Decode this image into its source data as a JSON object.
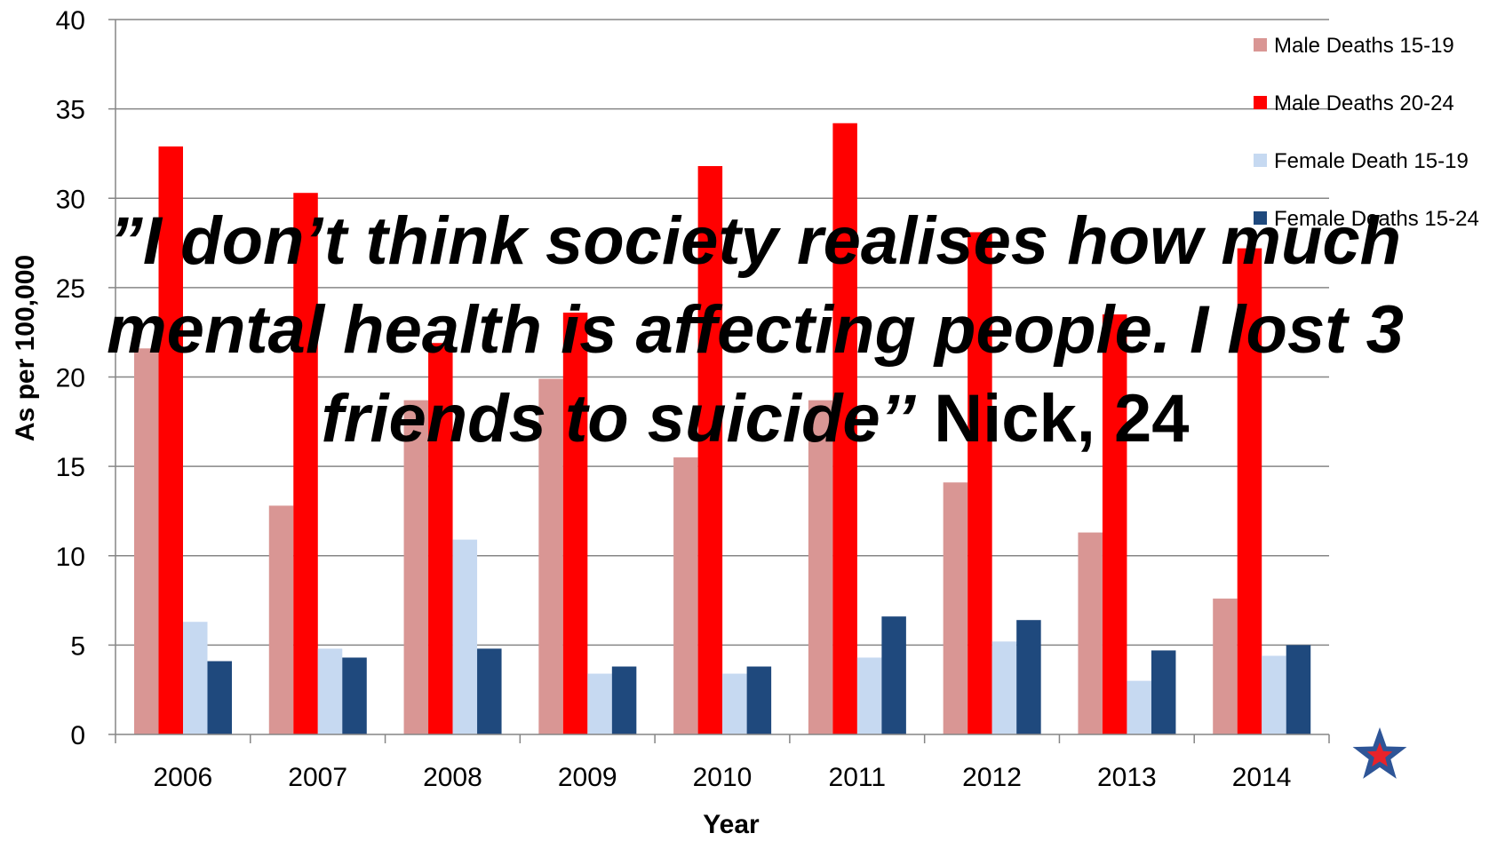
{
  "chart_data": {
    "type": "bar",
    "categories": [
      "2006",
      "2007",
      "2008",
      "2009",
      "2010",
      "2011",
      "2012",
      "2013",
      "2014"
    ],
    "series": [
      {
        "name": "Male Deaths 15-19",
        "color": "#d99694",
        "values": [
          21.6,
          12.8,
          18.7,
          19.9,
          15.5,
          18.7,
          14.1,
          11.3,
          7.6
        ]
      },
      {
        "name": "Male Deaths 20-24",
        "color": "#ff0000",
        "values": [
          32.9,
          30.3,
          21.9,
          23.6,
          31.8,
          34.2,
          28.1,
          23.5,
          27.2
        ]
      },
      {
        "name": "Female Death 15-19",
        "color": "#c6d9f1",
        "values": [
          6.3,
          4.8,
          10.9,
          3.4,
          3.4,
          4.3,
          5.2,
          3.0,
          4.4
        ]
      },
      {
        "name": "Female Deaths 15-24",
        "color": "#1f497d",
        "values": [
          4.1,
          4.3,
          4.8,
          3.8,
          3.8,
          6.6,
          6.4,
          4.7,
          5.0
        ]
      }
    ],
    "xlabel": "Year",
    "ylabel": "As per 100,000",
    "ylim": [
      0,
      40
    ],
    "yticks": [
      0,
      5,
      10,
      15,
      20,
      25,
      30,
      35,
      40
    ],
    "grid": true,
    "legend": "top-right"
  },
  "quote": {
    "text": "”I don’t think society realises how much mental health is affecting people. I lost 3 friends to suicide’’",
    "author": "Nick, 24"
  },
  "decoration": {
    "star_icon": "star-icon",
    "star_outer": "#2e5597",
    "star_inner": "#e8232a"
  }
}
